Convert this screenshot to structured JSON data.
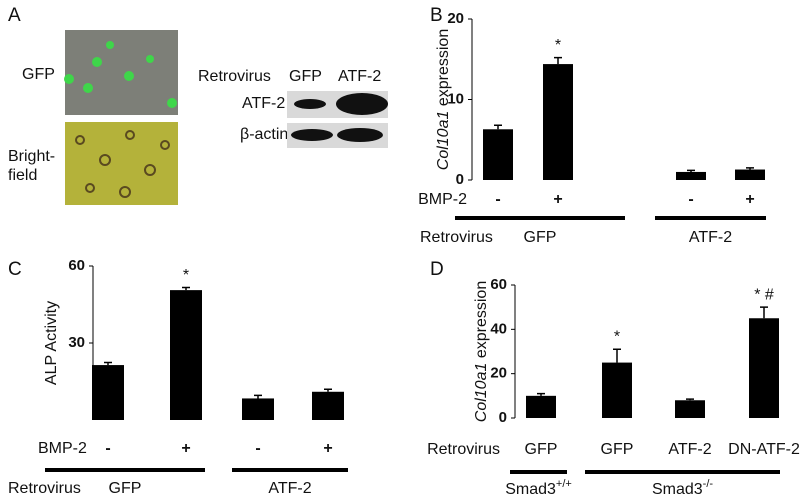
{
  "panel_a": {
    "label": "A",
    "image_labels": [
      "GFP",
      "Bright-",
      "field"
    ],
    "blot_header": [
      "Retrovirus",
      "GFP",
      "ATF-2"
    ],
    "blot_rows": [
      "ATF-2",
      "β-actin"
    ]
  },
  "chart_data": [
    {
      "type": "bar",
      "label": "B",
      "ylabel": {
        "italic": "Col10a1",
        "text": "expression"
      },
      "categories": [
        "-",
        "+",
        "-",
        "+"
      ],
      "category_label": "BMP-2",
      "values": [
        6.3,
        14.4,
        1.0,
        1.3
      ],
      "errors": [
        0.5,
        0.8,
        0.2,
        0.2
      ],
      "annotations": [
        null,
        "*",
        null,
        null
      ],
      "group_label": "Retrovirus",
      "groups": [
        {
          "text": "GFP"
        },
        {
          "text": "ATF-2"
        }
      ],
      "color": "#000000",
      "ylim": [
        0,
        20
      ],
      "yticks": [
        0,
        10,
        20
      ]
    },
    {
      "type": "bar",
      "label": "C",
      "ylabel": "ALP Activity",
      "categories": [
        "-",
        "+",
        "-",
        "+"
      ],
      "category_label": "BMP-2",
      "values": [
        21.4,
        50.6,
        8.4,
        11
      ],
      "errors": [
        1,
        1,
        1.2,
        1
      ],
      "annotations": [
        null,
        "*",
        null,
        null
      ],
      "group_label": "Retrovirus",
      "groups": [
        {
          "text": "GFP"
        },
        {
          "text": "ATF-2"
        }
      ],
      "color": "#000000",
      "ylim": [
        0,
        60
      ],
      "yticks": [
        30,
        60
      ]
    },
    {
      "type": "bar",
      "label": "D",
      "ylabel": {
        "italic": "Col10a1",
        "text": "expression"
      },
      "categories": [
        "GFP",
        "GFP",
        "ATF-2",
        "DN-ATF-2"
      ],
      "category_label": "Retrovirus",
      "values": [
        10,
        25,
        8,
        45
      ],
      "errors": [
        1,
        6,
        0.5,
        5
      ],
      "annotations": [
        null,
        "*",
        null,
        "* #"
      ],
      "groups": [
        {
          "text": "Smad3",
          "sup": "+/+"
        },
        {
          "text": "Smad3",
          "sup": "-/-"
        }
      ],
      "color": "#000000",
      "ylim": [
        0,
        60
      ],
      "yticks": [
        0,
        20,
        40,
        60
      ]
    }
  ]
}
